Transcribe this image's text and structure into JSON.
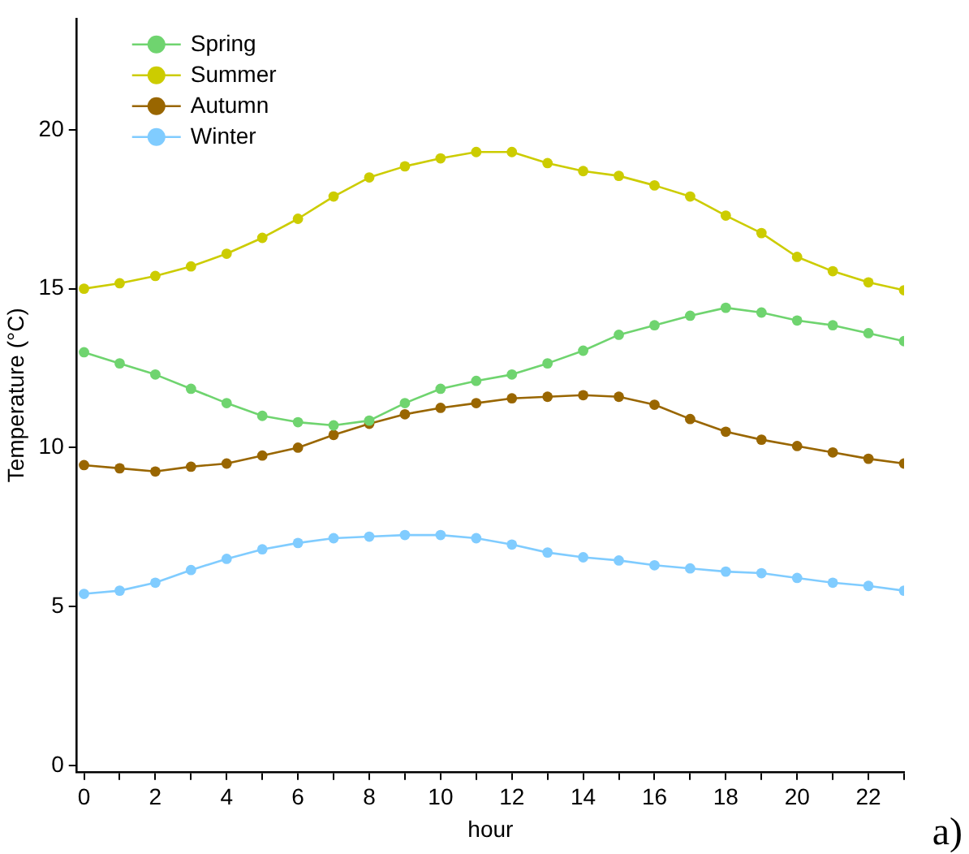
{
  "chart_data": {
    "type": "line",
    "xlabel": "hour",
    "ylabel": "Temperature (°C)",
    "annotations": [
      "a)"
    ],
    "x": [
      0,
      1,
      2,
      3,
      4,
      5,
      6,
      7,
      8,
      9,
      10,
      11,
      12,
      13,
      14,
      15,
      16,
      17,
      18,
      19,
      20,
      21,
      22,
      23
    ],
    "xlim": [
      -0.2,
      23
    ],
    "xticks": [
      0,
      {
        "value": 1,
        "label": null
      },
      2,
      {
        "value": 3,
        "label": null
      },
      4,
      {
        "value": 5,
        "label": null
      },
      6,
      {
        "value": 7,
        "label": null
      },
      8,
      {
        "value": 9,
        "label": null
      },
      10,
      {
        "value": 11,
        "label": null
      },
      12,
      {
        "value": 13,
        "label": null
      },
      14,
      {
        "value": 15,
        "label": null
      },
      16,
      {
        "value": 17,
        "label": null
      },
      18,
      {
        "value": 19,
        "label": null
      },
      20,
      {
        "value": 21,
        "label": null
      },
      22,
      {
        "value": 23,
        "label": null
      }
    ],
    "ylim": [
      -0.2,
      23.5
    ],
    "yticks": [
      0,
      5,
      10,
      15,
      20
    ],
    "grid": false,
    "legend": "top left",
    "marker": "circle",
    "line_style": "solid",
    "series": [
      {
        "name": "Spring",
        "color": "#6fd46f",
        "values": [
          13.0,
          12.65,
          12.3,
          11.85,
          11.4,
          11.0,
          10.8,
          10.7,
          10.85,
          11.4,
          11.85,
          12.1,
          12.3,
          12.65,
          13.05,
          13.55,
          13.85,
          14.15,
          14.4,
          14.25,
          14.0,
          13.85,
          13.6,
          13.35
        ]
      },
      {
        "name": "Summer",
        "color": "#cccc00",
        "values": [
          15.0,
          15.17,
          15.4,
          15.7,
          16.1,
          16.6,
          17.2,
          17.9,
          18.5,
          18.85,
          19.1,
          19.3,
          19.3,
          18.95,
          18.7,
          18.55,
          18.25,
          17.9,
          17.3,
          16.75,
          16.0,
          15.55,
          15.2,
          14.95
        ]
      },
      {
        "name": "Autumn",
        "color": "#996600",
        "values": [
          9.45,
          9.35,
          9.25,
          9.4,
          9.5,
          9.75,
          10.0,
          10.4,
          10.75,
          11.05,
          11.25,
          11.4,
          11.55,
          11.6,
          11.65,
          11.6,
          11.35,
          10.9,
          10.5,
          10.25,
          10.05,
          9.85,
          9.65,
          9.5
        ]
      },
      {
        "name": "Winter",
        "color": "#80ccff",
        "values": [
          5.4,
          5.5,
          5.75,
          6.15,
          6.5,
          6.8,
          7.0,
          7.15,
          7.2,
          7.25,
          7.25,
          7.15,
          6.95,
          6.7,
          6.55,
          6.45,
          6.3,
          6.2,
          6.1,
          6.05,
          5.9,
          5.75,
          5.65,
          5.5
        ]
      }
    ]
  }
}
